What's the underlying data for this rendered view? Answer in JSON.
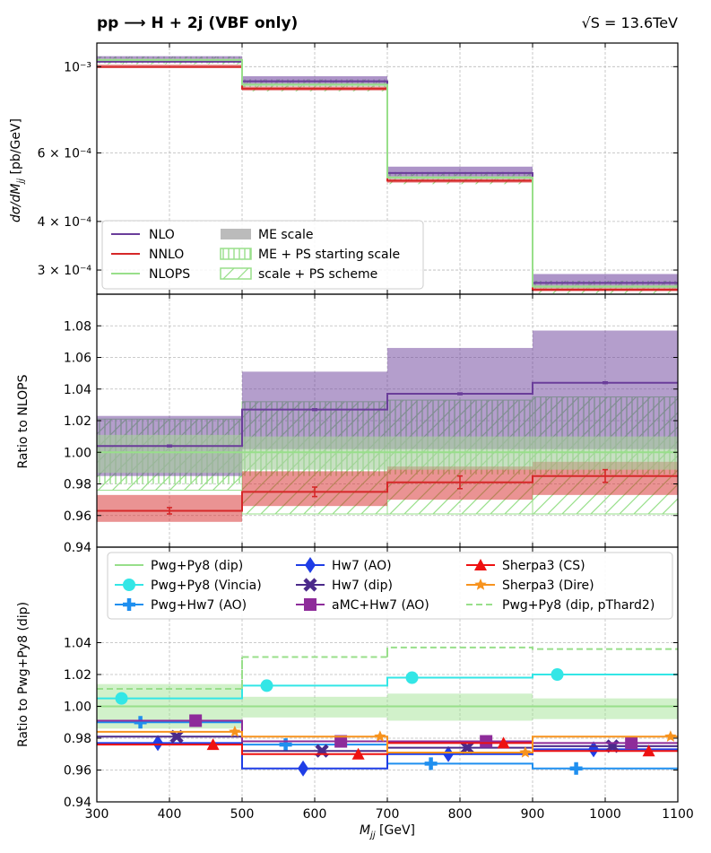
{
  "header": {
    "process_title": "pp ⟶ H + 2j (VBF only)",
    "energy_label": "√S = 13.6TeV"
  },
  "colors": {
    "nlo": "#6a3d9a",
    "nnlo": "#d62728",
    "nlops": "#98df8a",
    "me_scale": "#bbbbbb",
    "pwg_py8_dip": "#98df8a",
    "pwg_py8_vincia": "#33e6e6",
    "pwg_hw7_ao": "#1f8fef",
    "hw7_ao": "#1f3de6",
    "hw7_dip": "#4b2a8a",
    "amc_hw7_ao": "#8e2c9a",
    "sherpa3_cs": "#ee1111",
    "sherpa3_dire": "#f7931e"
  },
  "chart_data": [
    {
      "panel": "top",
      "type": "step",
      "xlabel": "M_jj [GeV]",
      "ylabel": "dσ/dM_jj [pb/GeV]",
      "yscale": "log",
      "xlim": [
        300,
        1100
      ],
      "ylim": [
        0.00026,
        0.00115
      ],
      "y_ticks": [
        {
          "value": 0.001,
          "label": "10⁻³"
        },
        {
          "value": 0.0006,
          "label": "6 × 10⁻⁴"
        },
        {
          "value": 0.0004,
          "label": "4 × 10⁻⁴"
        },
        {
          "value": 0.0003,
          "label": "3 × 10⁻⁴"
        }
      ],
      "bin_edges": [
        300,
        500,
        700,
        900,
        1100
      ],
      "series": [
        {
          "name": "NLO",
          "key": "nlo",
          "values": [
            0.00103,
            0.000917,
            0.000533,
            0.000278
          ]
        },
        {
          "name": "NNLO",
          "key": "nnlo",
          "values": [
            0.000998,
            0.000878,
            0.000509,
            0.000267
          ]
        },
        {
          "name": "NLOPS",
          "key": "nlops",
          "values": [
            0.00104,
            0.000899,
            0.000519,
            0.000272
          ]
        }
      ],
      "legend": {
        "placement": "lower-left",
        "entries": [
          {
            "label": "NLO",
            "key": "nlo",
            "style": "line"
          },
          {
            "label": "NNLO",
            "key": "nnlo",
            "style": "line"
          },
          {
            "label": "NLOPS",
            "key": "nlops",
            "style": "line"
          },
          {
            "label": "ME scale",
            "key": "me_scale",
            "style": "fill"
          },
          {
            "label": "ME + PS starting scale",
            "key": "nlops",
            "style": "vhatch"
          },
          {
            "label": "scale + PS scheme",
            "key": "nlops",
            "style": "dhatch"
          }
        ]
      }
    },
    {
      "panel": "middle",
      "type": "step",
      "ylabel": "Ratio to NLOPS",
      "xlim": [
        300,
        1100
      ],
      "ylim": [
        0.94,
        1.1
      ],
      "y_ticks": [
        0.94,
        0.96,
        0.98,
        1.0,
        1.02,
        1.04,
        1.06,
        1.08
      ],
      "bin_edges": [
        300,
        500,
        700,
        900,
        1100
      ],
      "series": [
        {
          "name": "NLO",
          "key": "nlo",
          "values": [
            1.004,
            1.027,
            1.037,
            1.044
          ],
          "err": [
            0.0005,
            0.0005,
            0.0005,
            0.0005
          ],
          "band_low": [
            0.985,
            1.002,
            1.002,
            1.002
          ],
          "band_high": [
            1.023,
            1.051,
            1.066,
            1.077
          ]
        },
        {
          "name": "NNLO",
          "key": "nnlo",
          "values": [
            0.963,
            0.975,
            0.981,
            0.985
          ],
          "err": [
            0.002,
            0.003,
            0.004,
            0.004
          ],
          "band_low": [
            0.956,
            0.966,
            0.97,
            0.973
          ],
          "band_high": [
            0.973,
            0.988,
            0.991,
            0.994
          ]
        },
        {
          "name": "NLOPS",
          "key": "nlops",
          "values": [
            1.0,
            1.0,
            1.0,
            1.0
          ],
          "me_low": [
            0.987,
            0.989,
            0.989,
            0.989
          ],
          "me_high": [
            1.011,
            1.01,
            1.01,
            1.01
          ],
          "ps_start_low": [
            0.98,
            0.985,
            0.986,
            0.986
          ],
          "ps_start_high": [
            1.021,
            1.032,
            1.033,
            1.035
          ],
          "ps_scheme_low": [
            0.976,
            0.961,
            0.961,
            0.961
          ],
          "ps_scheme_high": [
            1.021,
            1.032,
            1.033,
            1.035
          ]
        }
      ]
    },
    {
      "panel": "bottom",
      "type": "step",
      "ylabel": "Ratio to Pwg+Py8 (dip)",
      "xlim": [
        300,
        1100
      ],
      "ylim": [
        0.94,
        1.1
      ],
      "y_ticks": [
        0.94,
        0.96,
        0.98,
        1.0,
        1.02,
        1.04
      ],
      "x_ticks": [
        300,
        400,
        500,
        600,
        700,
        800,
        900,
        1000,
        1100
      ],
      "bin_edges": [
        300,
        500,
        700,
        900,
        1100
      ],
      "reference_band": {
        "low": [
          0.986,
          0.993,
          0.991,
          0.992
        ],
        "high": [
          1.014,
          1.006,
          1.008,
          1.005
        ]
      },
      "series": [
        {
          "name": "Pwg+Py8 (dip)",
          "key": "pwg_py8_dip",
          "marker": "none",
          "values": [
            1.0,
            1.0,
            1.0,
            1.0
          ]
        },
        {
          "name": "Pwg+Py8 (Vincia)",
          "key": "pwg_py8_vincia",
          "marker": "circle",
          "values": [
            1.005,
            1.013,
            1.018,
            1.02
          ]
        },
        {
          "name": "Pwg+Hw7 (AO)",
          "key": "pwg_hw7_ao",
          "marker": "plus",
          "values": [
            0.99,
            0.976,
            0.964,
            0.961
          ]
        },
        {
          "name": "Hw7 (AO)",
          "key": "hw7_ao",
          "marker": "diamond",
          "values": [
            0.977,
            0.961,
            0.97,
            0.973
          ]
        },
        {
          "name": "Hw7 (dip)",
          "key": "hw7_dip",
          "marker": "x",
          "values": [
            0.981,
            0.972,
            0.974,
            0.975
          ]
        },
        {
          "name": "aMC+Hw7 (AO)",
          "key": "amc_hw7_ao",
          "marker": "square",
          "values": [
            0.991,
            0.978,
            0.978,
            0.977
          ]
        },
        {
          "name": "Sherpa3 (CS)",
          "key": "sherpa3_cs",
          "marker": "triangle",
          "values": [
            0.976,
            0.97,
            0.977,
            0.972
          ]
        },
        {
          "name": "Sherpa3 (Dire)",
          "key": "sherpa3_dire",
          "marker": "star",
          "values": [
            0.984,
            0.981,
            0.971,
            0.981
          ]
        },
        {
          "name": "Pwg+Py8 (dip, pThard2)",
          "key": "pwg_py8_dip",
          "marker": "dashed",
          "values": [
            1.011,
            1.031,
            1.037,
            1.036
          ]
        }
      ]
    }
  ]
}
